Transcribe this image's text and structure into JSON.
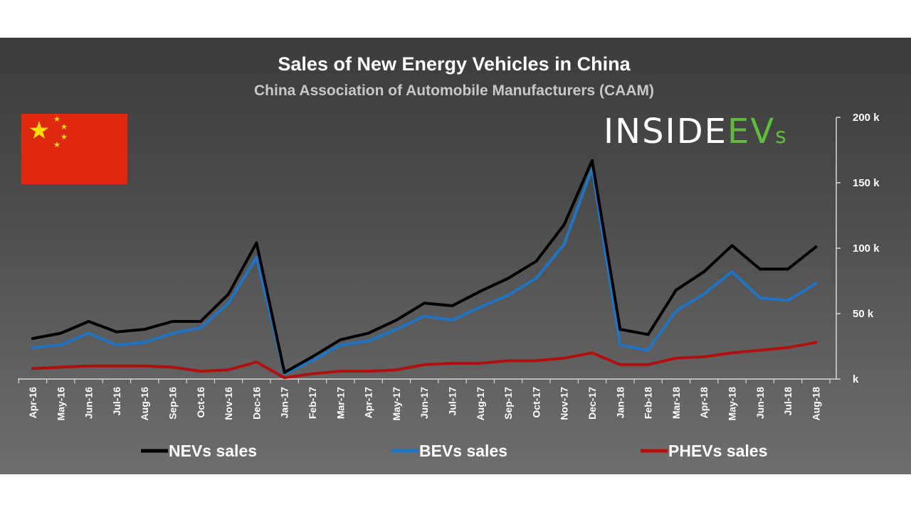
{
  "colors": {
    "nevs": "#000000",
    "bevs": "#1f74c4",
    "phevs": "#b01010",
    "flag_red": "#de2910",
    "flag_star": "#ffde00",
    "brand_white": "#ffffff",
    "brand_green": "#5fbd3b"
  },
  "logo": {
    "part1": "INSIDE",
    "part2": "EV",
    "part3": "s"
  },
  "flag": {
    "icon": "china-flag-icon"
  },
  "chart_data": {
    "type": "line",
    "title": "Sales of New Energy Vehicles in China",
    "subtitle": "China Association of Automobile Manufacturers (CAAM)",
    "xlabel": "",
    "ylabel": "",
    "ylim": [
      0,
      200
    ],
    "y_ticks": [
      {
        "value": 0,
        "label": "k"
      },
      {
        "value": 50,
        "label": "50 k"
      },
      {
        "value": 100,
        "label": "100 k"
      },
      {
        "value": 150,
        "label": "150 k"
      },
      {
        "value": 200,
        "label": "200 k"
      }
    ],
    "categories": [
      "Apr-16",
      "May-16",
      "Jun-16",
      "Jul-16",
      "Aug-16",
      "Sep-16",
      "Oct-16",
      "Nov-16",
      "Dec-16",
      "Jan-17",
      "Feb-17",
      "Mar-17",
      "Apr-17",
      "May-17",
      "Jun-17",
      "Jul-17",
      "Aug-17",
      "Sep-17",
      "Oct-17",
      "Nov-17",
      "Dec-17",
      "Jan-18",
      "Feb-18",
      "Mar-18",
      "Apr-18",
      "May-18",
      "Jun-18",
      "Jul-18",
      "Aug-18"
    ],
    "series": [
      {
        "name": "NEVs sales",
        "key": "nevs",
        "values": [
          31,
          35,
          44,
          36,
          38,
          44,
          44,
          65,
          104,
          5,
          17,
          30,
          35,
          45,
          58,
          56,
          67,
          77,
          90,
          118,
          167,
          38,
          34,
          68,
          82,
          102,
          84,
          84,
          101
        ]
      },
      {
        "name": "BEVs sales",
        "key": "bevs",
        "values": [
          24,
          26,
          35,
          26,
          28,
          35,
          39,
          58,
          93,
          4,
          14,
          26,
          29,
          38,
          48,
          45,
          55,
          64,
          77,
          103,
          161,
          26,
          22,
          52,
          65,
          82,
          62,
          60,
          73
        ]
      },
      {
        "name": "PHEVs sales",
        "key": "phevs",
        "values": [
          8,
          9,
          10,
          10,
          10,
          9,
          6,
          7,
          13,
          1,
          4,
          6,
          6,
          7,
          11,
          12,
          12,
          14,
          14,
          16,
          20,
          11,
          11,
          16,
          17,
          20,
          22,
          24,
          28
        ]
      }
    ],
    "legend_position": "bottom"
  }
}
